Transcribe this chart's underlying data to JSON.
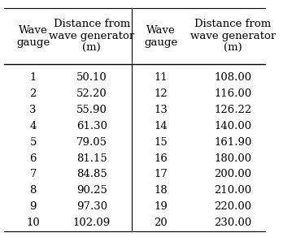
{
  "left_gauges": [
    1,
    2,
    3,
    4,
    5,
    6,
    7,
    8,
    9,
    10
  ],
  "left_distances": [
    "50.10",
    "52.20",
    "55.90",
    "61.30",
    "79.05",
    "81.15",
    "84.85",
    "90.25",
    "97.30",
    "102.09"
  ],
  "right_gauges": [
    11,
    12,
    13,
    14,
    15,
    16,
    17,
    18,
    19,
    20
  ],
  "right_distances": [
    "108.00",
    "116.00",
    "126.22",
    "140.00",
    "161.90",
    "180.00",
    "200.00",
    "210.00",
    "220.00",
    "230.00"
  ],
  "col_headers": [
    "Wave\ngauge",
    "Distance from\nwave generator\n(m)",
    "Wave\ngauge",
    "Distance from\nwave generator\n(m)"
  ],
  "bg_color": "#ffffff",
  "text_color": "#000000",
  "font_size": 9.5,
  "header_font_size": 9.5
}
